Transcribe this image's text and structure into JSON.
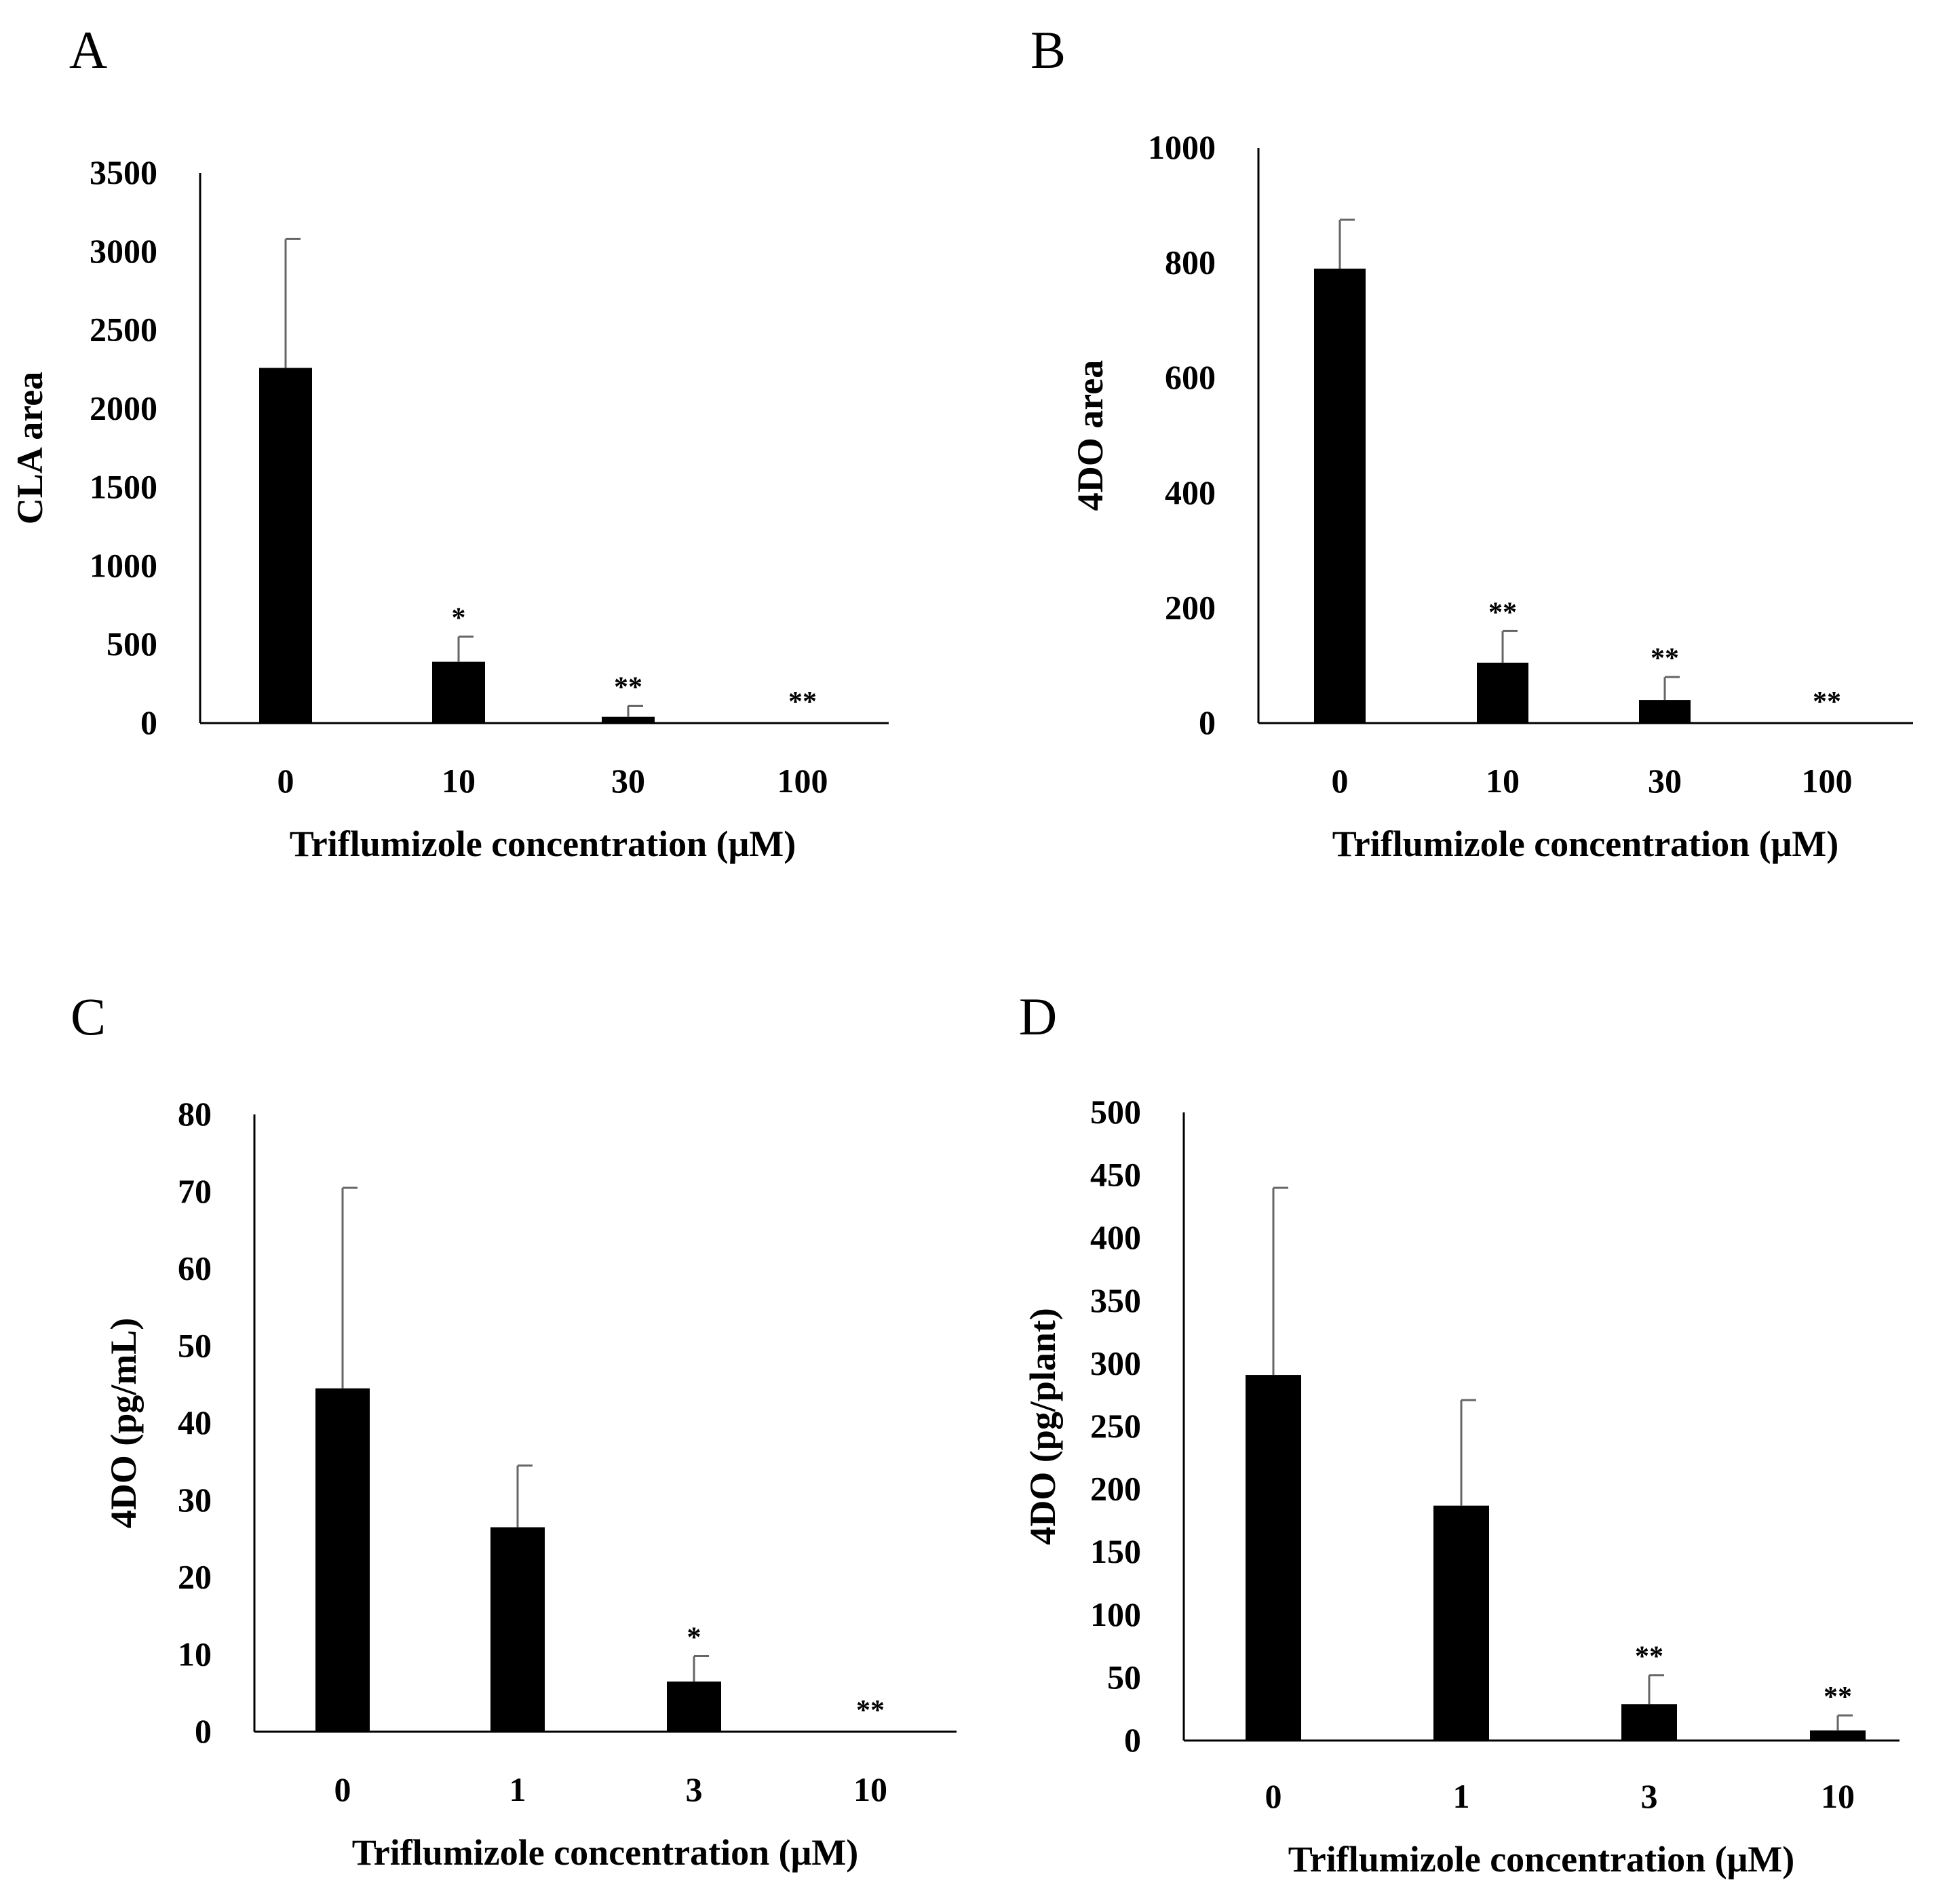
{
  "chart_data": [
    {
      "panel": "A",
      "type": "bar",
      "xlabel": "Triflumizole concentration (μM)",
      "ylabel": "CLA area",
      "ylim": [
        0,
        3500
      ],
      "yticks": [
        0,
        500,
        1000,
        1500,
        2000,
        2500,
        3000,
        3500
      ],
      "ytick_labels": [
        "0",
        "500",
        "1000",
        "1500",
        "2000",
        "2500",
        "3000",
        "3500"
      ],
      "categories": [
        "0",
        "10",
        "30",
        "100"
      ],
      "values": [
        2260,
        390,
        40,
        0
      ],
      "errors": [
        820,
        160,
        70,
        0
      ],
      "significance": [
        "",
        "*",
        "**",
        "**"
      ]
    },
    {
      "panel": "B",
      "type": "bar",
      "xlabel": "Triflumizole concentration (μM)",
      "ylabel": "4DO area",
      "ylim": [
        0,
        1000
      ],
      "yticks": [
        0,
        200,
        400,
        600,
        800,
        1000
      ],
      "ytick_labels": [
        "0",
        "200",
        "400",
        "600",
        "800",
        "1000"
      ],
      "categories": [
        "0",
        "10",
        "30",
        "100"
      ],
      "values": [
        790,
        105,
        40,
        0
      ],
      "errors": [
        85,
        55,
        40,
        0
      ],
      "significance": [
        "",
        "**",
        "**",
        "**"
      ]
    },
    {
      "panel": "C",
      "type": "bar",
      "xlabel": "Triflumizole concentration (μM)",
      "ylabel": "4DO (pg/mL)",
      "ylim": [
        0,
        80
      ],
      "yticks": [
        0,
        10,
        20,
        30,
        40,
        50,
        60,
        70,
        80
      ],
      "ytick_labels": [
        "0",
        "10",
        "20",
        "30",
        "40",
        "50",
        "60",
        "70",
        "80"
      ],
      "categories": [
        "0",
        "1",
        "3",
        "10"
      ],
      "values": [
        44.5,
        26.5,
        6.5,
        0
      ],
      "errors": [
        26,
        8,
        3.3,
        0
      ],
      "significance": [
        "",
        "",
        "*",
        "**"
      ]
    },
    {
      "panel": "D",
      "type": "bar",
      "xlabel": "Triflumizole concentration (μM)",
      "ylabel": "4DO (pg/plant)",
      "ylim": [
        0,
        500
      ],
      "yticks": [
        0,
        50,
        100,
        150,
        200,
        250,
        300,
        350,
        400,
        450,
        500
      ],
      "ytick_labels": [
        "0",
        "50",
        "100",
        "150",
        "200",
        "250",
        "300",
        "350",
        "400",
        "450",
        "500"
      ],
      "categories": [
        "0",
        "1",
        "3",
        "10"
      ],
      "values": [
        291,
        187,
        29,
        8
      ],
      "errors": [
        149,
        84,
        23,
        12
      ],
      "significance": [
        "",
        "",
        "**",
        "**"
      ]
    }
  ]
}
